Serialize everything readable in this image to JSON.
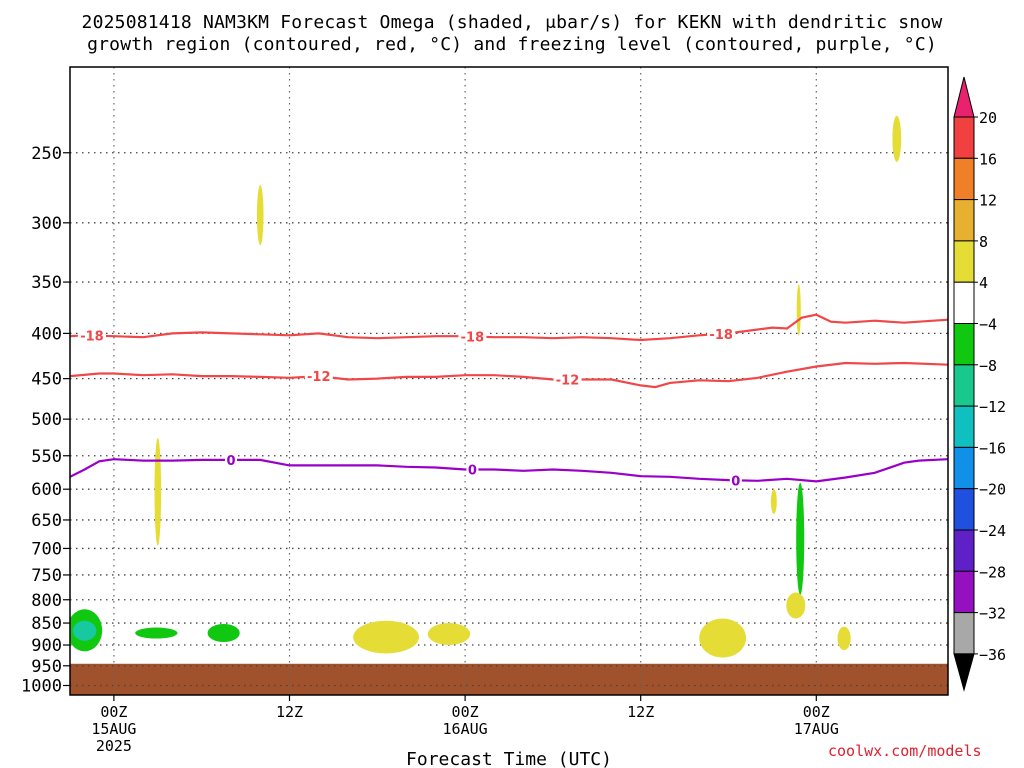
{
  "title_line1": "2025081418 NAM3KM Forecast Omega (shaded, μbar/s) for KEKN with dendritic snow",
  "title_line2": "growth region (contoured, red, °C) and freezing level (contoured, purple, °C)",
  "watermark": "coolwx.com/models",
  "chart_data": {
    "type": "heatmap",
    "title": "2025081418 NAM3KM Forecast Omega (shaded, μbar/s) for KEKN with dendritic snow growth region (contoured, red, °C) and freezing level (contoured, purple, °C)",
    "xlabel": "Forecast Time (UTC)",
    "ylabel": "",
    "x_unit": "forecast hour",
    "xlim": [
      -3,
      57
    ],
    "y_scale": "log-pressure (inverted)",
    "ylim": [
      1025,
      200
    ],
    "x_ticks": [
      {
        "x": 0,
        "label": "00Z",
        "sub1": "15AUG",
        "sub2": "2025"
      },
      {
        "x": 12,
        "label": "12Z",
        "sub1": "",
        "sub2": ""
      },
      {
        "x": 24,
        "label": "00Z",
        "sub1": "16AUG",
        "sub2": ""
      },
      {
        "x": 36,
        "label": "12Z",
        "sub1": "",
        "sub2": ""
      },
      {
        "x": 48,
        "label": "00Z",
        "sub1": "17AUG",
        "sub2": ""
      }
    ],
    "y_ticks": [
      250,
      300,
      350,
      400,
      450,
      500,
      550,
      600,
      650,
      700,
      750,
      800,
      850,
      900,
      950,
      1000
    ],
    "grid": true,
    "colorbar": {
      "labels": [
        "20",
        "16",
        "12",
        "8",
        "4",
        "−4",
        "−8",
        "−12",
        "−16",
        "−20",
        "−24",
        "−28",
        "−32",
        "−36"
      ],
      "colors": [
        "#e8226e",
        "#f04040",
        "#f07f28",
        "#e8b030",
        "#e6dc36",
        "#ffffff",
        "#10c810",
        "#18c88c",
        "#10c0c0",
        "#1090e8",
        "#2050e0",
        "#6020c8",
        "#9410c0",
        "#a8a8a8",
        "#000000"
      ]
    },
    "surface": {
      "color": "#a0522d",
      "top_hPa": 945
    },
    "contours": [
      {
        "label": "-18",
        "color": "#f04848",
        "x": [
          -3,
          -2,
          0,
          2,
          4,
          6,
          8,
          10,
          12,
          14,
          16,
          18,
          20,
          22,
          24,
          26,
          28,
          30,
          32,
          34,
          36,
          38,
          40,
          42,
          44,
          45,
          46,
          47,
          48,
          49,
          50,
          52,
          54,
          57
        ],
        "p": [
          403,
          402,
          403,
          404,
          400,
          399,
          400,
          401,
          402,
          400,
          404,
          405,
          404,
          403,
          403,
          404,
          404,
          405,
          404,
          405,
          407,
          405,
          402,
          400,
          396,
          394,
          395,
          384,
          381,
          388,
          389,
          387,
          389,
          386
        ],
        "label_x": [
          -1.5,
          24.5,
          41.5
        ]
      },
      {
        "label": "-12",
        "color": "#f04848",
        "x": [
          -3,
          -1,
          0,
          2,
          4,
          6,
          8,
          10,
          12,
          14,
          16,
          18,
          20,
          22,
          24,
          26,
          28,
          30,
          32,
          34,
          36,
          37,
          38,
          40,
          42,
          44,
          46,
          48,
          50,
          52,
          54,
          57
        ],
        "p": [
          447,
          444,
          444,
          446,
          445,
          447,
          447,
          448,
          449,
          447,
          451,
          450,
          448,
          448,
          446,
          446,
          448,
          451,
          451,
          451,
          458,
          460,
          455,
          452,
          453,
          449,
          442,
          436,
          432,
          433,
          432,
          434
        ],
        "label_x": [
          14,
          31
        ]
      },
      {
        "label": "0",
        "color": "#9a00c8",
        "x": [
          -3,
          -2,
          -1,
          0,
          2,
          4,
          6,
          8,
          10,
          12,
          14,
          16,
          18,
          20,
          22,
          24,
          26,
          28,
          30,
          32,
          34,
          36,
          38,
          40,
          42,
          44,
          46,
          48,
          50,
          52,
          54,
          55,
          57
        ],
        "p": [
          581,
          570,
          558,
          555,
          557,
          557,
          556,
          556,
          556,
          564,
          564,
          564,
          564,
          566,
          567,
          570,
          570,
          572,
          570,
          572,
          575,
          580,
          581,
          584,
          586,
          587,
          584,
          588,
          582,
          575,
          560,
          557,
          555
        ],
        "label_x": [
          8,
          24.5,
          42.5
        ]
      }
    ],
    "omega_blobs": [
      {
        "x": 10.0,
        "p_top": 272,
        "p_bot": 318,
        "w": 0.45,
        "color": "#e6dc36"
      },
      {
        "x": 53.5,
        "p_top": 227,
        "p_bot": 256,
        "w": 0.6,
        "color": "#e6dc36"
      },
      {
        "x": 46.8,
        "p_top": 352,
        "p_bot": 402,
        "w": 0.28,
        "color": "#e6dc36"
      },
      {
        "x": 3.0,
        "p_top": 525,
        "p_bot": 695,
        "w": 0.45,
        "color": "#e6dc36"
      },
      {
        "x": 45.1,
        "p_top": 600,
        "p_bot": 640,
        "w": 0.4,
        "color": "#e6dc36"
      },
      {
        "x": 46.9,
        "p_top": 590,
        "p_bot": 790,
        "w": 0.55,
        "color": "#10c810"
      },
      {
        "x": 46.6,
        "p_top": 785,
        "p_bot": 840,
        "w": 1.3,
        "color": "#e6dc36"
      },
      {
        "x": -2.0,
        "p_top": 820,
        "p_bot": 915,
        "w": 2.4,
        "color": "#10c810"
      },
      {
        "x": -2.0,
        "p_top": 845,
        "p_bot": 890,
        "w": 1.6,
        "color": "#18c8a0"
      },
      {
        "x": 2.9,
        "p_top": 860,
        "p_bot": 885,
        "w": 2.9,
        "color": "#10c810"
      },
      {
        "x": 7.5,
        "p_top": 852,
        "p_bot": 893,
        "w": 2.2,
        "color": "#10c810"
      },
      {
        "x": 18.6,
        "p_top": 845,
        "p_bot": 920,
        "w": 4.5,
        "color": "#e6dc36"
      },
      {
        "x": 22.9,
        "p_top": 850,
        "p_bot": 900,
        "w": 2.9,
        "color": "#e6dc36"
      },
      {
        "x": 41.6,
        "p_top": 840,
        "p_bot": 930,
        "w": 3.2,
        "color": "#e6dc36"
      },
      {
        "x": 49.9,
        "p_top": 858,
        "p_bot": 912,
        "w": 0.9,
        "color": "#e6dc36"
      }
    ]
  }
}
